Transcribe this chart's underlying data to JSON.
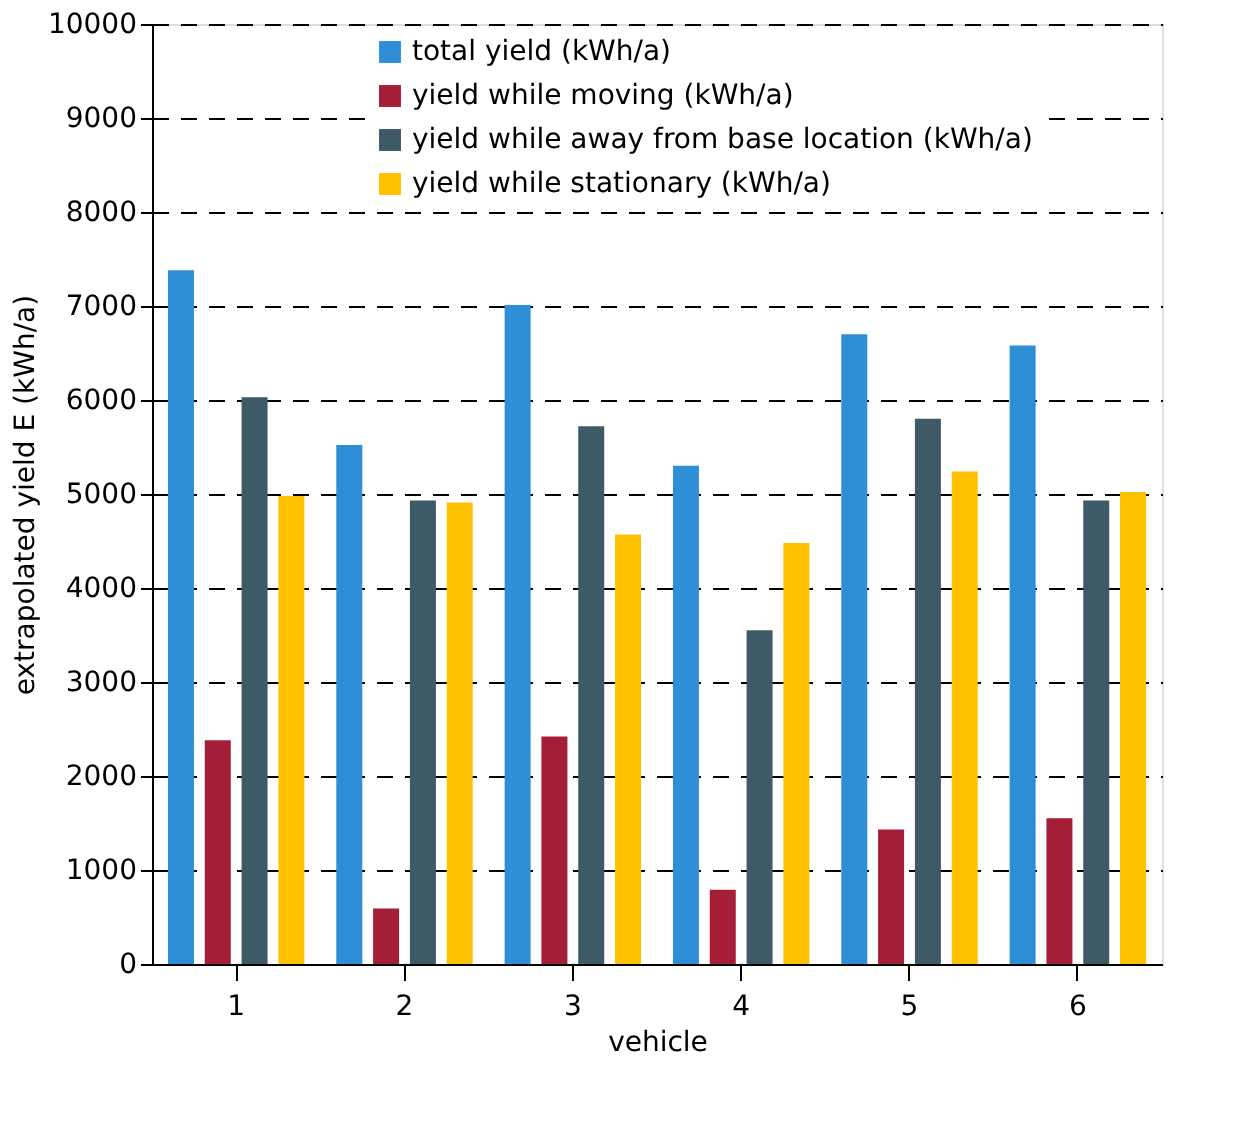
{
  "chart_data": {
    "type": "bar",
    "xlabel": "vehicle",
    "ylabel": "extrapolated yield E  (kWh/a)",
    "categories": [
      "1",
      "2",
      "3",
      "4",
      "5",
      "6"
    ],
    "series": [
      {
        "name": "total yield (kWh/a)",
        "color": "#2e8fd6",
        "values": [
          7380,
          5520,
          7010,
          5300,
          6700,
          6580
        ]
      },
      {
        "name": "yield while moving (kWh/a)",
        "color": "#a51e37",
        "values": [
          2380,
          590,
          2420,
          790,
          1430,
          1550
        ]
      },
      {
        "name": "yield while away from base location (kWh/a)",
        "color": "#3d5a66",
        "values": [
          6030,
          4930,
          5720,
          3550,
          5800,
          4930
        ]
      },
      {
        "name": "yield while stationary (kWh/a)",
        "color": "#ffc000",
        "values": [
          4980,
          4910,
          4570,
          4480,
          5240,
          5020
        ]
      }
    ],
    "ylim": [
      0,
      10000
    ],
    "yticks": [
      0,
      1000,
      2000,
      3000,
      4000,
      5000,
      6000,
      7000,
      8000,
      9000,
      10000
    ],
    "grid": "y",
    "legend": "top"
  }
}
